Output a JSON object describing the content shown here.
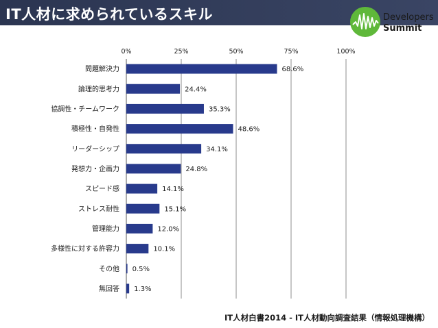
{
  "header": {
    "title": "IT人材に求められているスキル",
    "logo_line1": "Developers",
    "logo_line2": "Summit",
    "logo_icon": "waveform-circle-icon",
    "bar_color": "#2b3551",
    "logo_green": "#5fb83a"
  },
  "chart_data": {
    "type": "bar",
    "orientation": "horizontal",
    "categories": [
      "問題解決力",
      "論理的思考力",
      "協調性・チームワーク",
      "積極性・自発性",
      "リーダーシップ",
      "発想力・企画力",
      "スピード感",
      "ストレス耐性",
      "管理能力",
      "多様性に対する許容力",
      "その他",
      "無回答"
    ],
    "values": [
      68.6,
      24.4,
      35.3,
      48.6,
      34.1,
      24.8,
      14.1,
      15.1,
      12.0,
      10.1,
      0.5,
      1.3
    ],
    "value_labels": [
      "68.6%",
      "24.4%",
      "35.3%",
      "48.6%",
      "34.1%",
      "24.8%",
      "14.1%",
      "15.1%",
      "12.0%",
      "10.1%",
      "0.5%",
      "1.3%"
    ],
    "x_ticks": [
      "0%",
      "25%",
      "50%",
      "75%",
      "100%"
    ],
    "xlim": [
      0,
      100
    ],
    "grid": true,
    "bar_color": "#283a8c"
  },
  "footer": {
    "source": "IT人材白書2014 - IT人材動向調査結果（情報処理機構）"
  }
}
